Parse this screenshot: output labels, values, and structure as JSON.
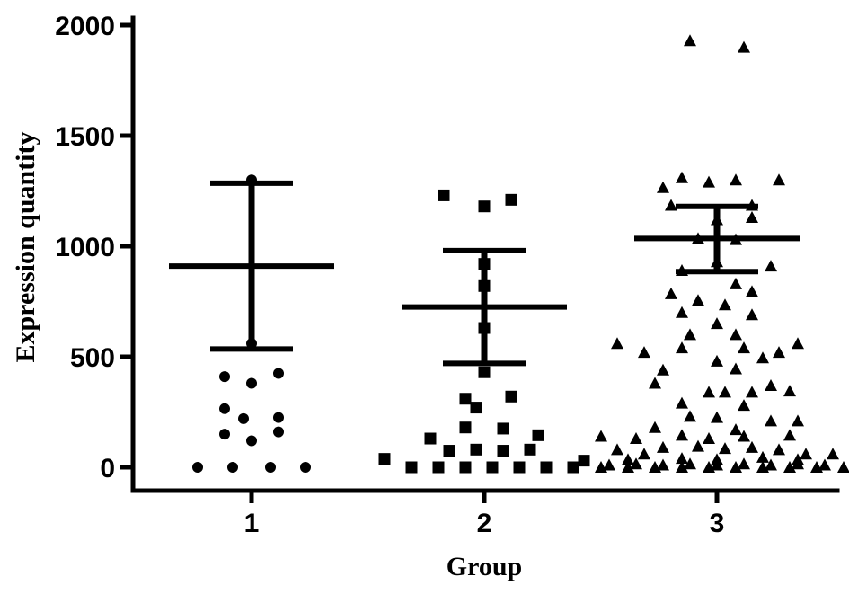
{
  "chart_data": {
    "type": "scatter",
    "xlabel": "Group",
    "ylabel": "Expression quantity",
    "categories": [
      "1",
      "2",
      "3"
    ],
    "yticks": [
      0,
      500,
      1000,
      1500,
      2000
    ],
    "ylim": [
      -120,
      2000
    ],
    "grid": false,
    "colors": {
      "marks": "#000000",
      "axis": "#000000"
    },
    "series": [
      {
        "category": "1",
        "marker": "circle",
        "mean": 910,
        "upper": 1285,
        "lower": 535,
        "points": [
          [
            0.0,
            1300
          ],
          [
            0.0,
            560
          ],
          [
            -0.1,
            410
          ],
          [
            0.1,
            425
          ],
          [
            0.0,
            380
          ],
          [
            -0.1,
            265
          ],
          [
            0.1,
            225
          ],
          [
            -0.03,
            220
          ],
          [
            -0.1,
            150
          ],
          [
            0.1,
            160
          ],
          [
            0.0,
            120
          ],
          [
            -0.2,
            0
          ],
          [
            -0.07,
            0
          ],
          [
            0.07,
            0
          ],
          [
            0.2,
            0
          ]
        ]
      },
      {
        "category": "2",
        "marker": "square",
        "mean": 725,
        "upper": 980,
        "lower": 470,
        "points": [
          [
            -0.15,
            1230
          ],
          [
            0.1,
            1210
          ],
          [
            0.0,
            1180
          ],
          [
            0.0,
            920
          ],
          [
            0.0,
            820
          ],
          [
            0.0,
            630
          ],
          [
            0.0,
            430
          ],
          [
            -0.07,
            310
          ],
          [
            0.1,
            320
          ],
          [
            -0.03,
            270
          ],
          [
            -0.07,
            180
          ],
          [
            0.07,
            175
          ],
          [
            -0.2,
            130
          ],
          [
            0.2,
            145
          ],
          [
            -0.13,
            75
          ],
          [
            -0.03,
            80
          ],
          [
            0.07,
            75
          ],
          [
            0.17,
            80
          ],
          [
            -0.37,
            38
          ],
          [
            0.37,
            30
          ],
          [
            -0.27,
            0
          ],
          [
            -0.17,
            0
          ],
          [
            -0.07,
            0
          ],
          [
            0.03,
            0
          ],
          [
            0.13,
            0
          ],
          [
            0.23,
            0
          ],
          [
            0.33,
            0
          ]
        ]
      },
      {
        "category": "3",
        "marker": "triangle",
        "mean": 1035,
        "upper": 1180,
        "lower": 885,
        "points": [
          [
            -0.1,
            1930
          ],
          [
            0.1,
            1900
          ],
          [
            -0.13,
            1310
          ],
          [
            0.07,
            1300
          ],
          [
            0.23,
            1300
          ],
          [
            -0.03,
            1290
          ],
          [
            -0.2,
            1265
          ],
          [
            -0.17,
            1185
          ],
          [
            0.13,
            1185
          ],
          [
            0.0,
            1120
          ],
          [
            0.13,
            1130
          ],
          [
            -0.07,
            1035
          ],
          [
            0.07,
            1030
          ],
          [
            0.0,
            930
          ],
          [
            0.2,
            910
          ],
          [
            -0.13,
            890
          ],
          [
            0.07,
            830
          ],
          [
            -0.17,
            785
          ],
          [
            0.13,
            795
          ],
          [
            -0.07,
            755
          ],
          [
            0.03,
            735
          ],
          [
            -0.13,
            700
          ],
          [
            0.13,
            690
          ],
          [
            0.0,
            650
          ],
          [
            -0.1,
            600
          ],
          [
            0.07,
            600
          ],
          [
            -0.37,
            560
          ],
          [
            -0.27,
            520
          ],
          [
            -0.13,
            540
          ],
          [
            0.1,
            540
          ],
          [
            0.3,
            560
          ],
          [
            0.23,
            520
          ],
          [
            0.0,
            480
          ],
          [
            0.17,
            495
          ],
          [
            -0.2,
            440
          ],
          [
            0.07,
            445
          ],
          [
            -0.23,
            380
          ],
          [
            0.2,
            370
          ],
          [
            -0.03,
            340
          ],
          [
            0.03,
            340
          ],
          [
            0.13,
            340
          ],
          [
            0.27,
            345
          ],
          [
            -0.13,
            290
          ],
          [
            0.1,
            280
          ],
          [
            -0.1,
            230
          ],
          [
            0.0,
            225
          ],
          [
            0.2,
            210
          ],
          [
            0.3,
            210
          ],
          [
            -0.23,
            180
          ],
          [
            0.07,
            170
          ],
          [
            -0.43,
            140
          ],
          [
            -0.3,
            130
          ],
          [
            -0.13,
            145
          ],
          [
            -0.03,
            130
          ],
          [
            0.1,
            140
          ],
          [
            0.27,
            145
          ],
          [
            -0.37,
            80
          ],
          [
            -0.2,
            90
          ],
          [
            -0.07,
            95
          ],
          [
            0.03,
            85
          ],
          [
            0.13,
            90
          ],
          [
            0.23,
            80
          ],
          [
            -0.27,
            60
          ],
          [
            0.33,
            60
          ],
          [
            0.43,
            60
          ],
          [
            -0.33,
            35
          ],
          [
            -0.13,
            40
          ],
          [
            0.0,
            35
          ],
          [
            0.17,
            45
          ],
          [
            0.3,
            35
          ],
          [
            -0.4,
            10
          ],
          [
            -0.3,
            15
          ],
          [
            -0.2,
            10
          ],
          [
            -0.1,
            15
          ],
          [
            0.0,
            10
          ],
          [
            0.1,
            15
          ],
          [
            0.2,
            10
          ],
          [
            0.3,
            15
          ],
          [
            0.4,
            10
          ],
          [
            -0.43,
            0
          ],
          [
            -0.33,
            0
          ],
          [
            -0.23,
            0
          ],
          [
            -0.13,
            0
          ],
          [
            -0.03,
            0
          ],
          [
            0.07,
            0
          ],
          [
            0.17,
            0
          ],
          [
            0.27,
            0
          ],
          [
            0.37,
            0
          ],
          [
            0.47,
            0
          ]
        ]
      }
    ]
  }
}
